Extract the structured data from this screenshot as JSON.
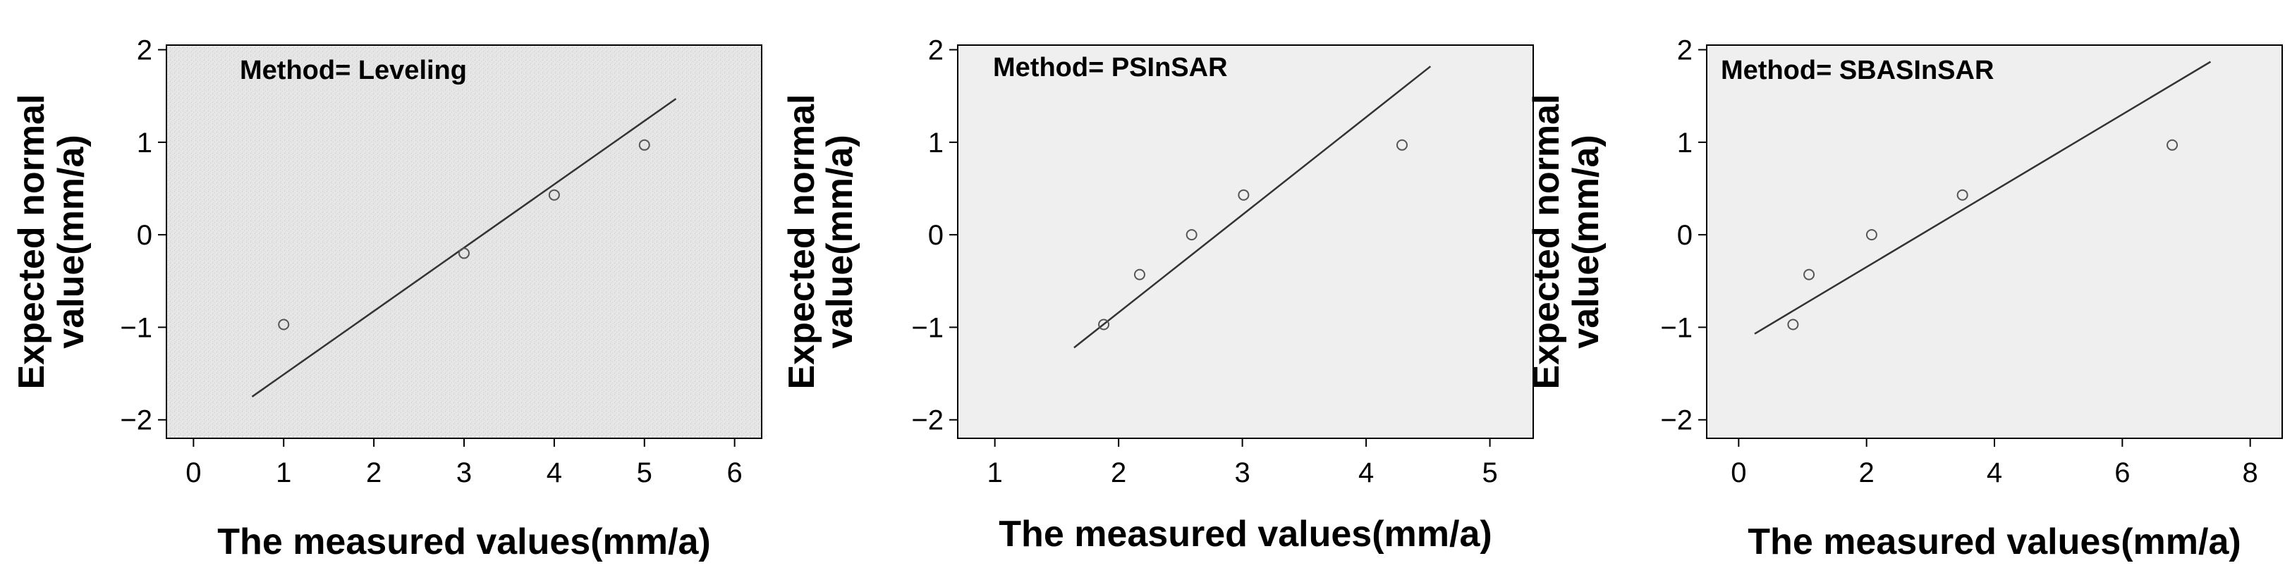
{
  "chart_data": [
    {
      "type": "scatter",
      "method_label": "Method= Leveling",
      "xlabel": "The measured values(mm/a)",
      "ylabel_line1": "Expected normal",
      "ylabel_line2": "value(mm/a)",
      "xlim": [
        -0.3,
        6.3
      ],
      "ylim": [
        -2.2,
        2.05
      ],
      "xticks": [
        0,
        1,
        2,
        3,
        4,
        5,
        6
      ],
      "xtick_labels": [
        "0",
        "1",
        "2",
        "3",
        "4",
        "5",
        "6"
      ],
      "yticks": [
        2,
        1,
        0,
        -1,
        -2
      ],
      "ytick_labels": [
        "2",
        "1",
        "0",
        "−1",
        "−2"
      ],
      "background": "#e3e3e3",
      "points": [
        {
          "x": 1,
          "y": -0.97
        },
        {
          "x": 3,
          "y": -0.2
        },
        {
          "x": 4,
          "y": 0.43
        },
        {
          "x": 5,
          "y": 0.97
        }
      ],
      "line": [
        [
          0.65,
          -1.75
        ],
        [
          5.35,
          1.47
        ]
      ]
    },
    {
      "type": "scatter",
      "method_label": "Method= PSInSAR",
      "xlabel": "The measured values(mm/a)",
      "ylabel_line1": "Expected normal",
      "ylabel_line2": "value(mm/a)",
      "xlim": [
        0.7,
        5.35
      ],
      "ylim": [
        -2.2,
        2.05
      ],
      "xticks": [
        1,
        2,
        3,
        4,
        5
      ],
      "xtick_labels": [
        "1",
        "2",
        "3",
        "4",
        "5"
      ],
      "yticks": [
        2,
        1,
        0,
        -1,
        -2
      ],
      "ytick_labels": [
        "2",
        "1",
        "0",
        "−1",
        "−2"
      ],
      "background": "#efefef",
      "points": [
        {
          "x": 1.88,
          "y": -0.97
        },
        {
          "x": 2.17,
          "y": -0.43
        },
        {
          "x": 2.59,
          "y": 0.0
        },
        {
          "x": 3.01,
          "y": 0.43
        },
        {
          "x": 4.29,
          "y": 0.97
        }
      ],
      "line": [
        [
          1.64,
          -1.22
        ],
        [
          4.52,
          1.82
        ]
      ]
    },
    {
      "type": "scatter",
      "method_label": "Method= SBASInSAR",
      "xlabel": "The measured values(mm/a)",
      "ylabel_line1": "Expected normal",
      "ylabel_line2": "value(mm/a)",
      "xlim": [
        -0.5,
        8.5
      ],
      "ylim": [
        -2.2,
        2.05
      ],
      "xticks": [
        0,
        2,
        4,
        6,
        8
      ],
      "xtick_labels": [
        "0",
        "2",
        "4",
        "6",
        "8"
      ],
      "yticks": [
        2,
        1,
        0,
        -1,
        -2
      ],
      "ytick_labels": [
        "2",
        "1",
        "0",
        "−1",
        "−2"
      ],
      "background": "#efefef",
      "points": [
        {
          "x": 0.85,
          "y": -0.97
        },
        {
          "x": 1.1,
          "y": -0.43
        },
        {
          "x": 2.08,
          "y": 0.0
        },
        {
          "x": 3.5,
          "y": 0.43
        },
        {
          "x": 6.78,
          "y": 0.97
        }
      ],
      "line": [
        [
          0.25,
          -1.07
        ],
        [
          7.38,
          1.87
        ]
      ]
    }
  ]
}
